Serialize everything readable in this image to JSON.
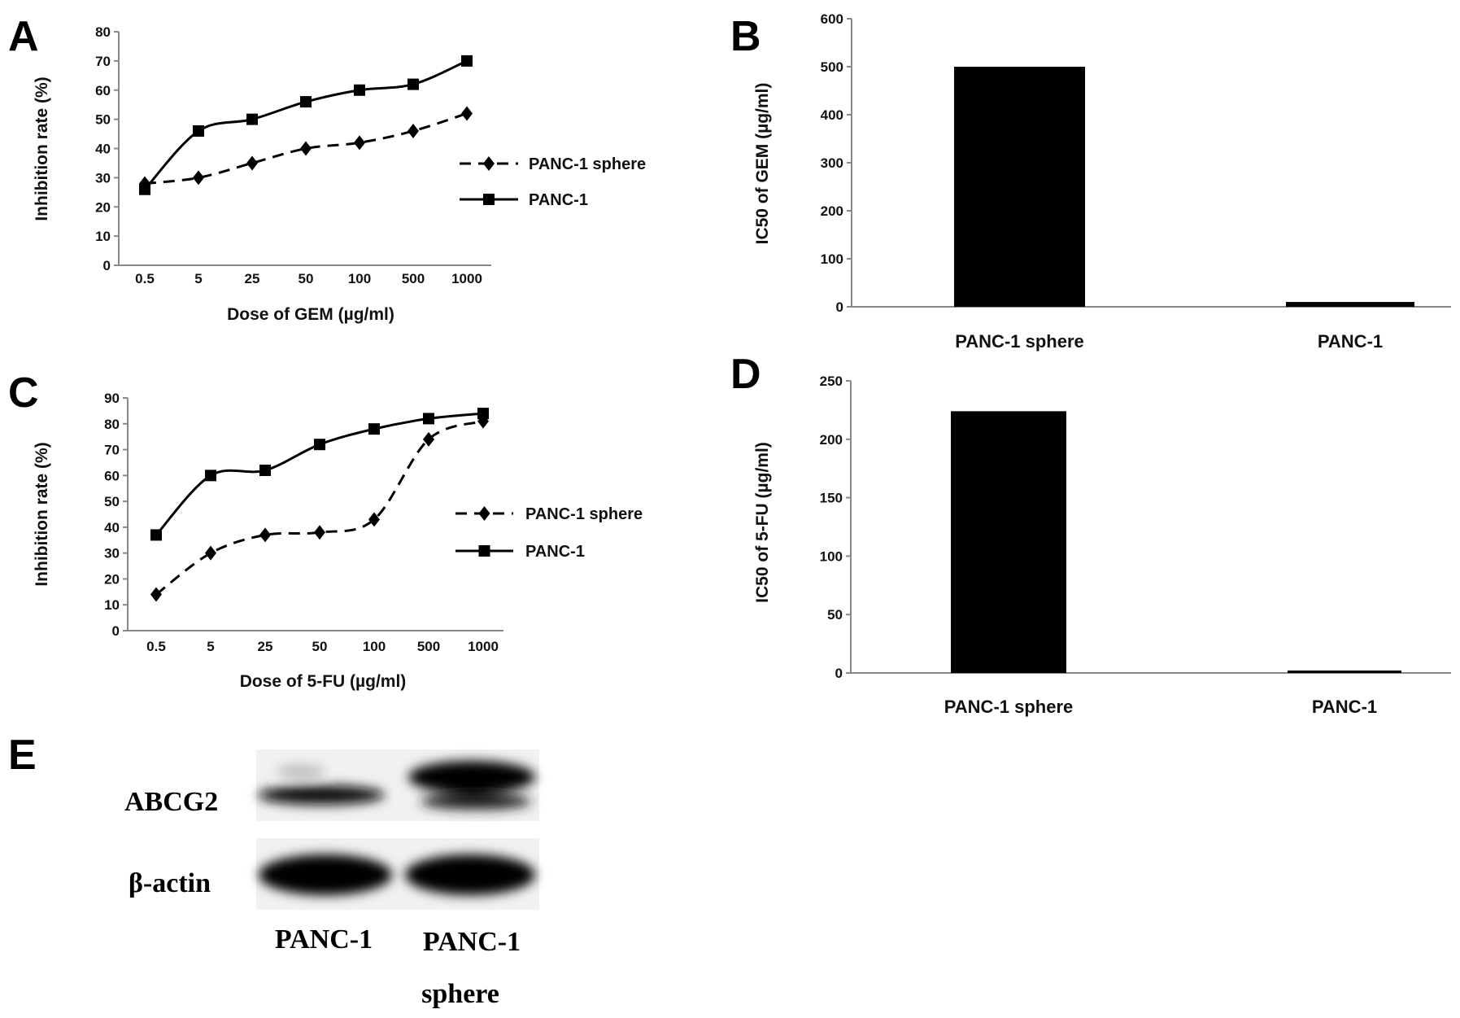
{
  "panel_labels": {
    "A": "A",
    "B": "B",
    "C": "C",
    "D": "D",
    "E": "E"
  },
  "chart_data": [
    {
      "panel": "A",
      "type": "line",
      "categories": [
        "0.5",
        "5",
        "25",
        "50",
        "100",
        "500",
        "1000"
      ],
      "series": [
        {
          "name": "PANC-1 sphere",
          "style": "dashed",
          "marker": "diamond",
          "values": [
            28,
            30,
            35,
            40,
            42,
            46,
            52
          ]
        },
        {
          "name": "PANC-1",
          "style": "solid",
          "marker": "square",
          "values": [
            26,
            46,
            50,
            56,
            60,
            62,
            70
          ]
        }
      ],
      "xlabel": "Dose of GEM  (µg/ml)",
      "ylabel": "Inhibition rate  (%)",
      "ylim": [
        0,
        80
      ],
      "yticks": [
        0,
        10,
        20,
        30,
        40,
        50,
        60,
        70,
        80
      ],
      "grid": false,
      "legend": "right"
    },
    {
      "panel": "B",
      "type": "bar",
      "categories": [
        "PANC-1 sphere",
        "PANC-1"
      ],
      "values": [
        500,
        10
      ],
      "xlabel": "",
      "ylabel": "IC50 of GEM  (µg/ml)",
      "ylim": [
        0,
        600
      ],
      "yticks": [
        0,
        100,
        200,
        300,
        400,
        500,
        600
      ],
      "grid": false,
      "bar_color": "#000000"
    },
    {
      "panel": "C",
      "type": "line",
      "categories": [
        "0.5",
        "5",
        "25",
        "50",
        "100",
        "500",
        "1000"
      ],
      "series": [
        {
          "name": "PANC-1 sphere",
          "style": "dashed",
          "marker": "diamond",
          "values": [
            14,
            30,
            37,
            38,
            43,
            74,
            81
          ]
        },
        {
          "name": "PANC-1",
          "style": "solid",
          "marker": "square",
          "values": [
            37,
            60,
            62,
            72,
            78,
            82,
            84
          ]
        }
      ],
      "xlabel": "Dose of 5-FU  (µg/ml)",
      "ylabel": "Inhibition rate  (%)",
      "ylim": [
        0,
        90
      ],
      "yticks": [
        0,
        10,
        20,
        30,
        40,
        50,
        60,
        70,
        80,
        90
      ],
      "grid": false,
      "legend": "right"
    },
    {
      "panel": "D",
      "type": "bar",
      "categories": [
        "PANC-1 sphere",
        "PANC-1"
      ],
      "values": [
        224,
        1
      ],
      "xlabel": "",
      "ylabel": "IC50 of 5-FU (µg/ml)",
      "ylim": [
        0,
        250
      ],
      "yticks": [
        0,
        50,
        100,
        150,
        200,
        250
      ],
      "grid": false,
      "bar_color": "#000000"
    }
  ],
  "western_blot": {
    "rows": [
      "ABCG2",
      "β-actin"
    ],
    "lanes": [
      {
        "line1": "PANC-1",
        "line2": ""
      },
      {
        "line1": "PANC-1",
        "line2": "sphere"
      }
    ]
  }
}
